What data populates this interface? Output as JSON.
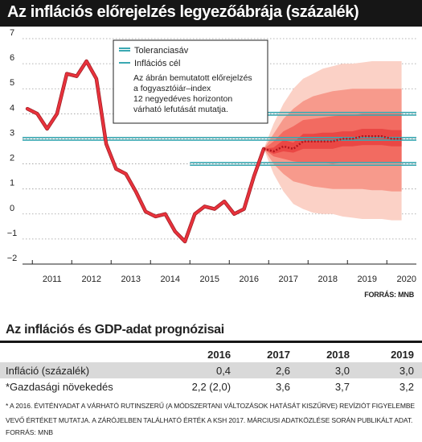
{
  "title": "Az inflációs előrejelzés legyezőábrája (százalék)",
  "source_top": "FORRÁS: MNB",
  "chart_data": {
    "type": "line",
    "title": "Az inflációs előrejelzés legyezőábrája (százalék)",
    "xlabel": "",
    "ylabel": "",
    "ylim": [
      -2,
      7
    ],
    "xlim": [
      2010.75,
      2020.75
    ],
    "yticks": [
      -2,
      -1,
      0,
      1,
      2,
      3,
      4,
      5,
      6,
      7
    ],
    "yticklabels": [
      "−2",
      "−1",
      "0",
      "1",
      "2",
      "3",
      "4",
      "5",
      "6",
      "7"
    ],
    "xticks": [
      "2011",
      "2012",
      "2013",
      "2014",
      "2015",
      "2016",
      "2017",
      "2018",
      "2019",
      "2020"
    ],
    "grid": "horizontal",
    "legend_position": "top-center",
    "legend": [
      {
        "label": "Toleranciasáv",
        "color": "#3aa8b2"
      },
      {
        "label": "Inflációs cél",
        "color": "#3aa8b2"
      }
    ],
    "annotation": [
      "Az ábrán bemutatott előrejelzés",
      "a fogyasztóiár–index",
      "12 negyedéves horizonton",
      "várható lefutását mutatja."
    ],
    "inflation_target": 3,
    "tolerance_band": [
      2,
      4
    ],
    "tolerance_band_start": "2015.0",
    "series": [
      {
        "name": "Infláció",
        "color": "#e8323c",
        "x": [
          2010.875,
          2011.125,
          2011.375,
          2011.625,
          2011.875,
          2012.125,
          2012.375,
          2012.625,
          2012.875,
          2013.125,
          2013.375,
          2013.625,
          2013.875,
          2014.125,
          2014.375,
          2014.625,
          2014.875,
          2015.125,
          2015.375,
          2015.625,
          2015.875,
          2016.125,
          2016.375,
          2016.625,
          2016.875
        ],
        "y": [
          4.2,
          4.0,
          3.4,
          4.0,
          5.6,
          5.5,
          6.1,
          5.4,
          2.8,
          1.8,
          1.6,
          0.9,
          0.1,
          -0.1,
          0.0,
          -0.7,
          -1.1,
          0.0,
          0.3,
          0.2,
          0.5,
          0.0,
          0.2,
          1.5,
          2.6
        ]
      },
      {
        "name": "Előrejelzés",
        "color": "#e8323c",
        "style": "dotted",
        "x": [
          2016.875,
          2017.125,
          2017.375,
          2017.625,
          2017.875,
          2018.125,
          2018.375,
          2018.625,
          2018.875,
          2019.125,
          2019.375,
          2019.625,
          2019.875,
          2020.125,
          2020.375
        ],
        "y": [
          2.6,
          2.5,
          2.7,
          2.6,
          2.9,
          2.9,
          2.9,
          2.9,
          3.0,
          3.0,
          3.1,
          3.1,
          3.1,
          3.0,
          3.0
        ]
      }
    ],
    "fan_bands": [
      {
        "color": "#fbd1c6",
        "lower": [
          2.6,
          1.6,
          0.9,
          0.4,
          0.2,
          0.05,
          0.0,
          0.0,
          -0.1,
          -0.15,
          -0.2,
          -0.2,
          -0.2,
          -0.25,
          -0.25
        ],
        "upper": [
          2.6,
          3.6,
          4.4,
          5.0,
          5.4,
          5.6,
          5.8,
          5.9,
          6.0,
          6.0,
          6.05,
          6.1,
          6.1,
          6.1,
          6.1
        ]
      },
      {
        "color": "#f79a8c",
        "lower": [
          2.6,
          2.0,
          1.6,
          1.3,
          1.2,
          1.1,
          1.05,
          1.0,
          1.0,
          1.0,
          1.0,
          0.95,
          0.95,
          0.9,
          0.9
        ],
        "upper": [
          2.6,
          3.2,
          3.8,
          4.2,
          4.5,
          4.7,
          4.8,
          4.9,
          4.95,
          5.0,
          5.0,
          5.0,
          5.0,
          5.0,
          5.0
        ]
      },
      {
        "color": "#f26b61",
        "lower": [
          2.6,
          2.3,
          2.2,
          2.1,
          2.05,
          2.05,
          2.05,
          2.0,
          2.05,
          2.05,
          2.05,
          2.05,
          2.05,
          2.05,
          2.05
        ],
        "upper": [
          2.6,
          2.9,
          3.3,
          3.5,
          3.75,
          3.8,
          3.85,
          3.9,
          3.95,
          3.95,
          4.0,
          4.0,
          4.0,
          4.0,
          4.0
        ]
      },
      {
        "color": "#ea4744",
        "lower": [
          2.6,
          2.4,
          2.5,
          2.45,
          2.6,
          2.6,
          2.6,
          2.6,
          2.7,
          2.7,
          2.75,
          2.75,
          2.75,
          2.7,
          2.7
        ],
        "upper": [
          2.6,
          2.65,
          2.95,
          2.85,
          3.2,
          3.2,
          3.25,
          3.25,
          3.3,
          3.3,
          3.4,
          3.4,
          3.4,
          3.35,
          3.35
        ]
      }
    ],
    "fan_x": [
      2016.875,
      2017.125,
      2017.375,
      2017.625,
      2017.875,
      2018.125,
      2018.375,
      2018.625,
      2018.875,
      2019.125,
      2019.375,
      2019.625,
      2019.875,
      2020.125,
      2020.375
    ]
  },
  "table": {
    "title": "Az inflációs és GDP-adat prognózisai",
    "years": [
      "2016",
      "2017",
      "2018",
      "2019"
    ],
    "rows": [
      {
        "label": "Infláció (százalék)",
        "values": [
          "0,4",
          "2,6",
          "3,0",
          "3,0"
        ]
      },
      {
        "label": "*Gazdasági növekedés",
        "values": [
          "2,2 (2,0)",
          "3,6",
          "3,7",
          "3,2"
        ]
      }
    ]
  },
  "footnote": "* A 2016. ÉVITÉNYADAT A VÁRHATÓ RUTINSZERŰ (A MÓDSZERTANI VÁLTOZÁSOK HATÁSÁT KISZŰRVE) REVÍZIÓT FIGYELEMBE VEVŐ ÉRTÉKET MUTATJA. A ZÁRÓJELBEN TALÁLHATÓ ÉRTÉK A KSH 2017. MÁRCIUSI ADATKÖZLÉSE SORÁN PUBLIKÁLT ADAT.",
  "source_bottom": "FORRÁS: MNB"
}
